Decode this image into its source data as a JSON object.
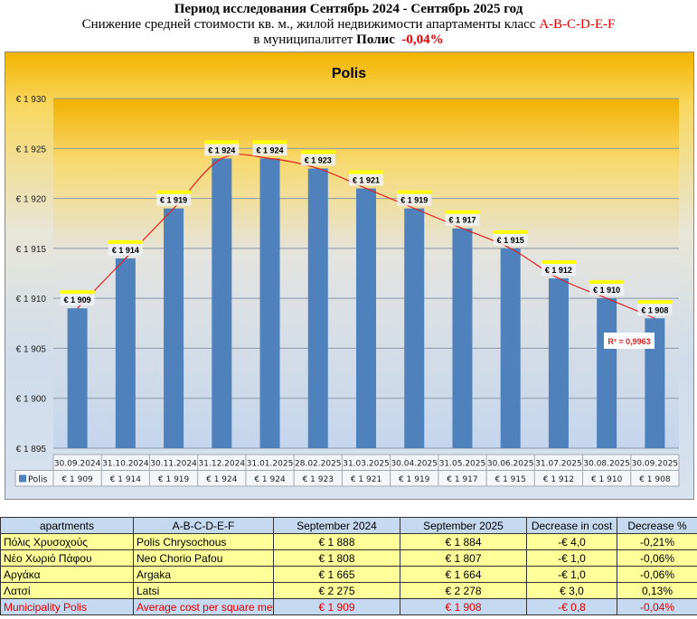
{
  "header": {
    "line1": "Период исследования Сентябрь 2024 - Сентябрь 2025 год",
    "line2_prefix": "Снижение средней стоимости кв. м., жилой недвижимости апартаменты класс ",
    "line2_class": "A-B-C-D-E-F",
    "line3_prefix": "в муниципалитет ",
    "line3_bold": "Полис",
    "line3_pct": "-0,04%"
  },
  "colors": {
    "bar": "#4f81bd",
    "trend": "#e02020",
    "label_highlight": "#ffff00",
    "red": "#e00000"
  },
  "chart_data": {
    "type": "bar",
    "title": "Polis",
    "categories": [
      "30.09.2024",
      "31.10.2024",
      "30.11.2024",
      "31.12.2024",
      "31.01.2025",
      "28.02.2025",
      "31.03.2025",
      "30.04.2025",
      "31.05.2025",
      "30.06.2025",
      "31.07.2025",
      "30.08.2025",
      "30.09.2025"
    ],
    "series": [
      {
        "name": "Polis",
        "values": [
          1909,
          1914,
          1919,
          1924,
          1924,
          1923,
          1921,
          1919,
          1917,
          1915,
          1912,
          1910,
          1908
        ]
      }
    ],
    "data_labels": [
      "€ 1 909",
      "€ 1 914",
      "€ 1 919",
      "€ 1 924",
      "€ 1 924",
      "€ 1 923",
      "€ 1 921",
      "€ 1 919",
      "€ 1 917",
      "€ 1 915",
      "€ 1 912",
      "€ 1 910",
      "€ 1 908"
    ],
    "ylim": [
      1895,
      1930
    ],
    "yticks": [
      1895,
      1900,
      1905,
      1910,
      1915,
      1920,
      1925,
      1930
    ],
    "ytick_labels": [
      "€ 1 895",
      "€ 1 900",
      "€ 1 905",
      "€ 1 910",
      "€ 1 915",
      "€ 1 920",
      "€ 1 925",
      "€ 1 930"
    ],
    "trendline": {
      "type": "polynomial",
      "r2_label": "R² = 0,9963"
    },
    "legend": "data-table",
    "grid": true
  },
  "table": {
    "headers": [
      "apartments",
      "A-B-C-D-E-F",
      "September 2024",
      "September 2025",
      "Decrease in cost",
      "Decrease %"
    ],
    "rows": [
      [
        "Πόλις Χρυσοχούς",
        "Polis Chrysochous",
        "€ 1 888",
        "€ 1 884",
        "-€ 4,0",
        "-0,21%"
      ],
      [
        "Νέο Χωριό Πάφου",
        "Neo Chorio Pafou",
        "€ 1 808",
        "€ 1 807",
        "-€ 1,0",
        "-0,06%"
      ],
      [
        "Αργάκα",
        "Argaka",
        "€ 1 665",
        "€ 1 664",
        "-€ 1,0",
        "-0,06%"
      ],
      [
        "Λατσί",
        "Latsi",
        "€ 2 275",
        "€ 2 278",
        "€ 3,0",
        "0,13%"
      ]
    ],
    "total": [
      "Municipality Polis",
      "Average cost per square meter",
      "€ 1 909",
      "€ 1 908",
      "-€ 0,8",
      "-0,04%"
    ]
  }
}
